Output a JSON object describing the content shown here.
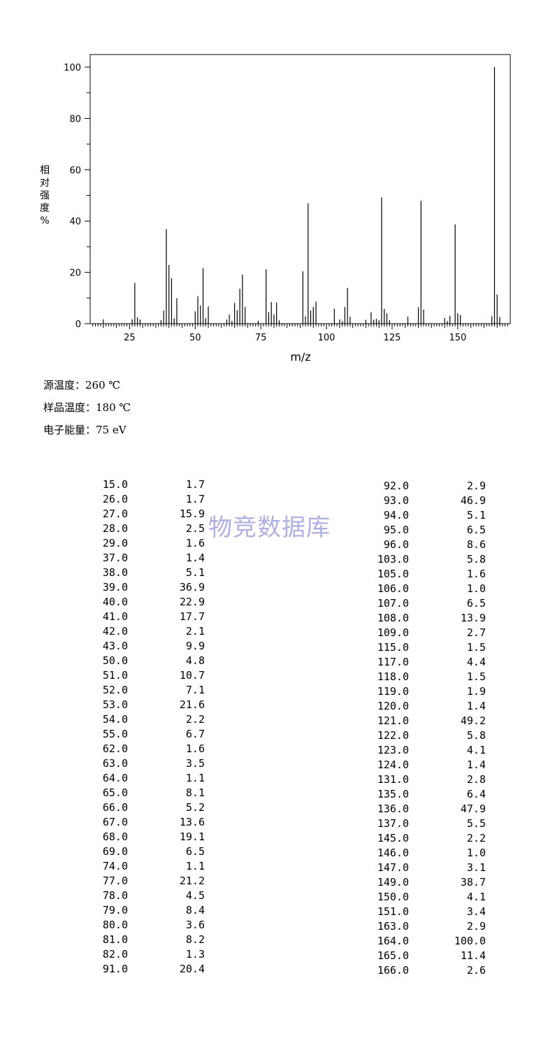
{
  "chart_data": {
    "type": "bar",
    "xlabel": "m/z",
    "ylabel": "相对强度%",
    "xlim": [
      10,
      170
    ],
    "ylim": [
      0,
      100
    ],
    "x_ticks": [
      "25",
      "50",
      "75",
      "100",
      "125",
      "150"
    ],
    "y_ticks": [
      "0",
      "20",
      "40",
      "60",
      "80",
      "100"
    ],
    "grid": false,
    "x": [
      15.0,
      26.0,
      27.0,
      28.0,
      29.0,
      37.0,
      38.0,
      39.0,
      40.0,
      41.0,
      42.0,
      43.0,
      50.0,
      51.0,
      52.0,
      53.0,
      54.0,
      55.0,
      62.0,
      63.0,
      64.0,
      65.0,
      66.0,
      67.0,
      68.0,
      69.0,
      74.0,
      77.0,
      78.0,
      79.0,
      80.0,
      81.0,
      82.0,
      91.0,
      92.0,
      93.0,
      94.0,
      95.0,
      96.0,
      103.0,
      105.0,
      106.0,
      107.0,
      108.0,
      109.0,
      115.0,
      117.0,
      118.0,
      119.0,
      120.0,
      121.0,
      122.0,
      123.0,
      124.0,
      131.0,
      135.0,
      136.0,
      137.0,
      145.0,
      146.0,
      147.0,
      149.0,
      150.0,
      151.0,
      163.0,
      164.0,
      165.0,
      166.0
    ],
    "values": [
      1.7,
      1.7,
      15.9,
      2.5,
      1.6,
      1.4,
      5.1,
      36.9,
      22.9,
      17.7,
      2.1,
      9.9,
      4.8,
      10.7,
      7.1,
      21.6,
      2.2,
      6.7,
      1.6,
      3.5,
      1.1,
      8.1,
      5.2,
      13.6,
      19.1,
      6.5,
      1.1,
      21.2,
      4.5,
      8.4,
      3.6,
      8.2,
      1.3,
      20.4,
      2.9,
      46.9,
      5.1,
      6.5,
      8.6,
      5.8,
      1.6,
      1.0,
      6.5,
      13.9,
      2.7,
      1.5,
      4.4,
      1.5,
      1.9,
      1.4,
      49.2,
      5.8,
      4.1,
      1.4,
      2.8,
      6.4,
      47.9,
      5.5,
      2.2,
      1.0,
      3.1,
      38.7,
      4.1,
      3.4,
      2.9,
      100.0,
      11.4,
      2.6
    ]
  },
  "conditions": [
    "源温度：260 ℃",
    "样品温度：180 ℃",
    "电子能量：75 eV"
  ],
  "watermark": "物竞数据库",
  "peak_table_left": [
    [
      "15.0",
      "1.7"
    ],
    [
      "26.0",
      "1.7"
    ],
    [
      "27.0",
      "15.9"
    ],
    [
      "28.0",
      "2.5"
    ],
    [
      "29.0",
      "1.6"
    ],
    [
      "37.0",
      "1.4"
    ],
    [
      "38.0",
      "5.1"
    ],
    [
      "39.0",
      "36.9"
    ],
    [
      "40.0",
      "22.9"
    ],
    [
      "41.0",
      "17.7"
    ],
    [
      "42.0",
      "2.1"
    ],
    [
      "43.0",
      "9.9"
    ],
    [
      "50.0",
      "4.8"
    ],
    [
      "51.0",
      "10.7"
    ],
    [
      "52.0",
      "7.1"
    ],
    [
      "53.0",
      "21.6"
    ],
    [
      "54.0",
      "2.2"
    ],
    [
      "55.0",
      "6.7"
    ],
    [
      "62.0",
      "1.6"
    ],
    [
      "63.0",
      "3.5"
    ],
    [
      "64.0",
      "1.1"
    ],
    [
      "65.0",
      "8.1"
    ],
    [
      "66.0",
      "5.2"
    ],
    [
      "67.0",
      "13.6"
    ],
    [
      "68.0",
      "19.1"
    ],
    [
      "69.0",
      "6.5"
    ],
    [
      "74.0",
      "1.1"
    ],
    [
      "77.0",
      "21.2"
    ],
    [
      "78.0",
      "4.5"
    ],
    [
      "79.0",
      "8.4"
    ],
    [
      "80.0",
      "3.6"
    ],
    [
      "81.0",
      "8.2"
    ],
    [
      "82.0",
      "1.3"
    ],
    [
      "91.0",
      "20.4"
    ]
  ],
  "peak_table_right": [
    [
      "92.0",
      "2.9"
    ],
    [
      "93.0",
      "46.9"
    ],
    [
      "94.0",
      "5.1"
    ],
    [
      "95.0",
      "6.5"
    ],
    [
      "96.0",
      "8.6"
    ],
    [
      "103.0",
      "5.8"
    ],
    [
      "105.0",
      "1.6"
    ],
    [
      "106.0",
      "1.0"
    ],
    [
      "107.0",
      "6.5"
    ],
    [
      "108.0",
      "13.9"
    ],
    [
      "109.0",
      "2.7"
    ],
    [
      "115.0",
      "1.5"
    ],
    [
      "117.0",
      "4.4"
    ],
    [
      "118.0",
      "1.5"
    ],
    [
      "119.0",
      "1.9"
    ],
    [
      "120.0",
      "1.4"
    ],
    [
      "121.0",
      "49.2"
    ],
    [
      "122.0",
      "5.8"
    ],
    [
      "123.0",
      "4.1"
    ],
    [
      "124.0",
      "1.4"
    ],
    [
      "131.0",
      "2.8"
    ],
    [
      "135.0",
      "6.4"
    ],
    [
      "136.0",
      "47.9"
    ],
    [
      "137.0",
      "5.5"
    ],
    [
      "145.0",
      "2.2"
    ],
    [
      "146.0",
      "1.0"
    ],
    [
      "147.0",
      "3.1"
    ],
    [
      "149.0",
      "38.7"
    ],
    [
      "150.0",
      "4.1"
    ],
    [
      "151.0",
      "3.4"
    ],
    [
      "163.0",
      "2.9"
    ],
    [
      "164.0",
      "100.0"
    ],
    [
      "165.0",
      "11.4"
    ],
    [
      "166.0",
      "2.6"
    ]
  ]
}
